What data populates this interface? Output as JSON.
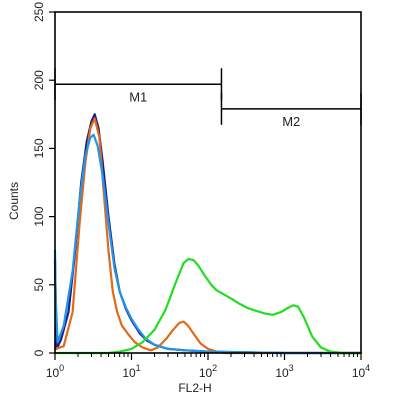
{
  "chart_data": {
    "type": "line",
    "title": "",
    "xlabel": "FL2-H",
    "ylabel": "Counts",
    "x_scale": "log",
    "xlim": [
      1,
      10000
    ],
    "ylim": [
      0,
      250
    ],
    "x_ticks": [
      {
        "value": 1,
        "base": "10",
        "exp": "0"
      },
      {
        "value": 10,
        "base": "10",
        "exp": "1"
      },
      {
        "value": 100,
        "base": "10",
        "exp": "2"
      },
      {
        "value": 1000,
        "base": "10",
        "exp": "3"
      },
      {
        "value": 10000,
        "base": "10",
        "exp": "4"
      }
    ],
    "y_ticks": [
      "0",
      "50",
      "100",
      "150",
      "200",
      "250"
    ],
    "grid": false,
    "gates": [
      {
        "label": "M1",
        "x_start": 1,
        "x_end": 150,
        "y": 197
      },
      {
        "label": "M2",
        "x_start": 150,
        "x_end": 10000,
        "y": 179
      }
    ],
    "series": [
      {
        "color": "#1f1f8a",
        "x": [
          1,
          1.05,
          1.2,
          1.5,
          1.8,
          2.2,
          2.6,
          3.0,
          3.3,
          3.7,
          4.2,
          5.0,
          6.0,
          7.0,
          8.5,
          10,
          13,
          16,
          20,
          30,
          50,
          100,
          1000,
          10000
        ],
        "y": [
          68,
          3,
          10,
          30,
          70,
          125,
          155,
          170,
          175,
          165,
          140,
          100,
          65,
          45,
          32,
          24,
          14,
          9,
          6,
          3,
          2,
          1,
          0,
          0
        ]
      },
      {
        "color": "#e06a18",
        "x": [
          1,
          1.3,
          1.7,
          2.1,
          2.5,
          2.9,
          3.3,
          3.8,
          4.3,
          5.0,
          5.7,
          6.5,
          7.5,
          9,
          11,
          14,
          18,
          22,
          28,
          35,
          42,
          48,
          55,
          65,
          80,
          100,
          130,
          160,
          200,
          500,
          10000
        ],
        "y": [
          3,
          5,
          30,
          95,
          140,
          165,
          172,
          158,
          120,
          75,
          45,
          30,
          20,
          14,
          8,
          4,
          2,
          4,
          10,
          17,
          22,
          23,
          20,
          14,
          7,
          3,
          1,
          0,
          0,
          0,
          0
        ]
      },
      {
        "color": "#2196e8",
        "x": [
          1,
          1.02,
          1.08,
          1.3,
          1.7,
          2.1,
          2.5,
          2.9,
          3.2,
          3.6,
          4.2,
          5.0,
          6.0,
          7.0,
          8.5,
          10,
          12,
          15,
          20,
          30,
          50,
          100,
          1000,
          10000
        ],
        "y": [
          75,
          40,
          8,
          20,
          60,
          112,
          145,
          158,
          160,
          152,
          130,
          95,
          62,
          45,
          33,
          25,
          18,
          11,
          6,
          3,
          2,
          1,
          0,
          0
        ]
      },
      {
        "color": "#22dd22",
        "x": [
          1,
          5,
          7,
          10,
          14,
          20,
          28,
          38,
          48,
          56,
          65,
          75,
          90,
          110,
          130,
          160,
          200,
          260,
          330,
          420,
          550,
          700,
          900,
          1100,
          1300,
          1500,
          1800,
          2300,
          3000,
          4000,
          6000,
          10000
        ],
        "y": [
          0,
          0,
          1,
          3,
          8,
          17,
          32,
          52,
          66,
          69,
          68,
          64,
          57,
          50,
          46,
          43,
          40,
          36,
          33,
          31,
          29,
          28,
          30,
          33,
          35,
          34,
          26,
          12,
          4,
          1,
          0,
          0
        ]
      }
    ]
  }
}
